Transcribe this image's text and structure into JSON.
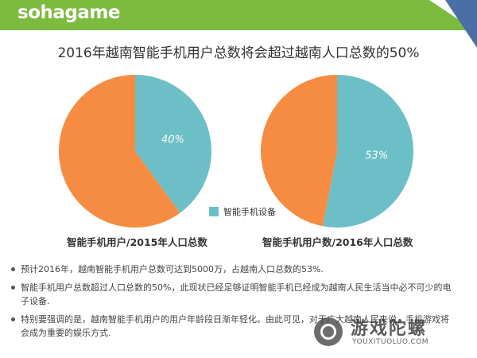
{
  "brand": "sohagame",
  "title": "2016年越南智能手机用户总数将会超过越南人口总数的50%",
  "colors": {
    "accent_green": "#7dbb3f",
    "teal": "#6cbfc7",
    "orange": "#f68c42",
    "corner_blue": "#4a6fa5"
  },
  "chart_data": [
    {
      "type": "pie",
      "title": "智能手机用户/2015年人口总数",
      "slices": [
        {
          "name": "智能手机设备",
          "value": 40,
          "label": "40%",
          "color": "#6cbfc7"
        },
        {
          "name": "",
          "value": 60,
          "label": "",
          "color": "#f68c42"
        }
      ],
      "legend": "right"
    },
    {
      "type": "pie",
      "title": "智能手机用户数/2016年人口总数",
      "slices": [
        {
          "name": "智能手机设备",
          "value": 53,
          "label": "53%",
          "color": "#6cbfc7"
        },
        {
          "name": "",
          "value": 47,
          "label": "",
          "color": "#f68c42"
        }
      ],
      "legend": "right"
    }
  ],
  "legend": {
    "label": "智能手机设备"
  },
  "bullets": [
    "预计2016年，越南智能手机用户总数可达到5000万，占越南人口总数的53%.",
    "智能手机用户总数超过人口总数的50%，此现状已经足够证明智能手机已经成为越南人民生活当中必不可少的电子设备.",
    "特别要强调的是，越南智能手机用户的用户年龄段日渐年轻化。由此可见，对于广大越南人民来说，手机游戏将会成为重要的娱乐方式."
  ],
  "watermark": {
    "text": "游戏陀螺",
    "sub": "YOUXITUOLUO.COM"
  }
}
